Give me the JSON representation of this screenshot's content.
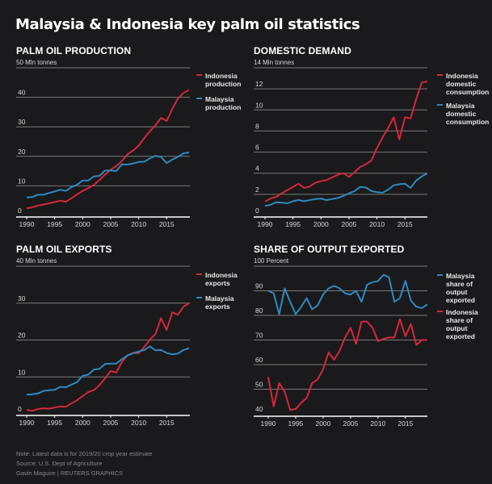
{
  "title": "Malaysia & Indonesia key palm oil statistics",
  "colors": {
    "indonesia": "#d5283a",
    "malaysia": "#2c8ac0",
    "grid": "#7a7a7a",
    "axis": "#ffffff",
    "background": "#1a191b"
  },
  "footer": {
    "note": "Note: Latest data is for 2019/20 crop year estimate",
    "source": "Source: U.S. Dept of Agriculture",
    "credit": "Gavin Maguire    | REUTERS GRAPHICS"
  },
  "chart_data": [
    {
      "id": "production",
      "type": "line",
      "title": "PALM OIL PRODUCTION",
      "unit_label": "50 Mln tonnes",
      "ylabel": "Mln tonnes",
      "ylim": [
        0,
        50
      ],
      "yticks": [
        0,
        10,
        20,
        30,
        40
      ],
      "xlim": [
        1990,
        2019
      ],
      "xticks": [
        1990,
        1995,
        2000,
        2005,
        2010,
        2015
      ],
      "grid": true,
      "legend_position": "right",
      "x": [
        1990,
        1991,
        1992,
        1993,
        1994,
        1995,
        1996,
        1997,
        1998,
        1999,
        2000,
        2001,
        2002,
        2003,
        2004,
        2005,
        2006,
        2007,
        2008,
        2009,
        2010,
        2011,
        2012,
        2013,
        2014,
        2015,
        2016,
        2017,
        2018,
        2019
      ],
      "series": [
        {
          "name": "Indonesia production",
          "country": "indonesia",
          "values": [
            2.4,
            2.7,
            3.3,
            3.7,
            4.1,
            4.5,
            5.0,
            4.6,
            5.8,
            7.1,
            8.3,
            9.2,
            10.3,
            12.0,
            13.8,
            15.5,
            16.7,
            18.4,
            20.7,
            22.0,
            23.6,
            26.2,
            28.5,
            30.5,
            33.0,
            32.0,
            36.0,
            39.5,
            41.5,
            42.5
          ]
        },
        {
          "name": "Malaysia production",
          "country": "malaysia",
          "values": [
            6.1,
            6.2,
            7.0,
            7.0,
            7.6,
            8.1,
            8.7,
            8.3,
            9.6,
            10.4,
            11.8,
            11.8,
            13.2,
            13.4,
            15.2,
            15.2,
            15.0,
            17.3,
            17.2,
            17.6,
            18.1,
            18.2,
            19.3,
            20.2,
            19.8,
            17.7,
            18.9,
            19.8,
            21.0,
            21.3
          ]
        }
      ],
      "legend": [
        "Indonesia\nproduction",
        "Malaysia\nproduction"
      ]
    },
    {
      "id": "demand",
      "type": "line",
      "title": "DOMESTIC DEMAND",
      "unit_label": "14 Mln tonnes",
      "ylabel": "Mln tonnes",
      "ylim": [
        0,
        14
      ],
      "yticks": [
        0,
        2,
        4,
        6,
        8,
        10,
        12
      ],
      "xlim": [
        1990,
        2019
      ],
      "xticks": [
        1990,
        1995,
        2000,
        2005,
        2010,
        2015
      ],
      "grid": true,
      "legend_position": "right",
      "x": [
        1990,
        1991,
        1992,
        1993,
        1994,
        1995,
        1996,
        1997,
        1998,
        1999,
        2000,
        2001,
        2002,
        2003,
        2004,
        2005,
        2006,
        2007,
        2008,
        2009,
        2010,
        2011,
        2012,
        2013,
        2014,
        2015,
        2016,
        2017,
        2018,
        2019
      ],
      "series": [
        {
          "name": "Indonesia domestic consumption",
          "country": "indonesia",
          "values": [
            1.3,
            1.6,
            1.75,
            2.1,
            2.4,
            2.7,
            3.0,
            2.6,
            2.75,
            3.1,
            3.25,
            3.35,
            3.6,
            3.85,
            4.0,
            3.65,
            4.1,
            4.6,
            4.85,
            5.2,
            6.4,
            7.4,
            8.3,
            9.3,
            7.2,
            9.3,
            9.2,
            11.0,
            12.6,
            12.7
          ]
        },
        {
          "name": "Malaysia domestic consumption",
          "country": "malaysia",
          "values": [
            0.9,
            1.0,
            1.25,
            1.2,
            1.15,
            1.35,
            1.45,
            1.35,
            1.45,
            1.55,
            1.6,
            1.45,
            1.55,
            1.65,
            1.85,
            2.1,
            2.3,
            2.7,
            2.65,
            2.3,
            2.2,
            2.15,
            2.45,
            2.85,
            2.95,
            3.0,
            2.6,
            3.3,
            3.7,
            4.0
          ]
        }
      ],
      "legend": [
        "Indonesia\ndomestic\nconsumption",
        "Malaysia\ndomestic\nconsumption"
      ]
    },
    {
      "id": "exports",
      "type": "line",
      "title": "PALM OIL EXPORTS",
      "unit_label": "40 Mln tonnes",
      "ylabel": "Mln tonnes",
      "ylim": [
        0,
        40
      ],
      "yticks": [
        0,
        10,
        20,
        30
      ],
      "xlim": [
        1990,
        2019
      ],
      "xticks": [
        1990,
        1995,
        2000,
        2005,
        2010,
        2015
      ],
      "grid": true,
      "legend_position": "right",
      "x": [
        1990,
        1991,
        1992,
        1993,
        1994,
        1995,
        1996,
        1997,
        1998,
        1999,
        2000,
        2001,
        2002,
        2003,
        2004,
        2005,
        2006,
        2007,
        2008,
        2009,
        2010,
        2011,
        2012,
        2013,
        2014,
        2015,
        2016,
        2017,
        2018,
        2019
      ],
      "series": [
        {
          "name": "Indonesia exports",
          "country": "indonesia",
          "values": [
            1.1,
            0.8,
            1.3,
            1.5,
            1.4,
            1.7,
            2.0,
            1.9,
            2.8,
            3.7,
            4.8,
            5.9,
            6.4,
            7.8,
            9.6,
            11.6,
            11.2,
            14.0,
            15.9,
            16.5,
            16.4,
            18.1,
            20.1,
            21.6,
            25.9,
            22.7,
            27.5,
            26.8,
            29.0,
            30.0
          ]
        },
        {
          "name": "Malaysia exports",
          "country": "malaysia",
          "values": [
            5.2,
            5.3,
            5.5,
            6.2,
            6.4,
            6.5,
            7.3,
            7.2,
            7.9,
            8.6,
            10.3,
            10.6,
            12.0,
            12.2,
            13.5,
            13.6,
            13.6,
            14.8,
            15.8,
            16.4,
            16.9,
            17.3,
            18.3,
            17.2,
            17.3,
            16.5,
            16.1,
            16.3,
            17.3,
            17.8
          ]
        }
      ],
      "legend": [
        "Indonesia\nexports",
        "Malaysia\nexports"
      ]
    },
    {
      "id": "share",
      "type": "line",
      "title": "SHARE OF OUTPUT EXPORTED",
      "unit_label": "100 Percent",
      "ylabel": "Percent",
      "ylim": [
        40,
        100
      ],
      "yticks": [
        40,
        50,
        60,
        70,
        80,
        90
      ],
      "xlim": [
        1990,
        2019
      ],
      "xticks": [
        1990,
        1995,
        2000,
        2005,
        2010,
        2015
      ],
      "grid": true,
      "legend_position": "right",
      "x": [
        1990,
        1991,
        1992,
        1993,
        1994,
        1995,
        1996,
        1997,
        1998,
        1999,
        2000,
        2001,
        2002,
        2003,
        2004,
        2005,
        2006,
        2007,
        2008,
        2009,
        2010,
        2011,
        2012,
        2013,
        2014,
        2015,
        2016,
        2017,
        2018,
        2019
      ],
      "series": [
        {
          "name": "Malaysia share of output exported",
          "country": "malaysia",
          "values": [
            90,
            89,
            80.5,
            91,
            85.5,
            80.5,
            83.5,
            87,
            82.5,
            84,
            88.5,
            91,
            92,
            91,
            89,
            88.5,
            90,
            85.5,
            92.5,
            93.5,
            94,
            96.5,
            95.5,
            85.5,
            87,
            94,
            86,
            83.5,
            83,
            84.5
          ]
        },
        {
          "name": "Indonesia share of output exported",
          "country": "indonesia",
          "values": [
            55,
            43,
            52.5,
            49,
            41.5,
            42,
            44.5,
            46.5,
            52.5,
            54,
            58,
            65,
            62,
            65.5,
            71,
            75,
            68.5,
            77.5,
            77.5,
            75,
            69.5,
            70.5,
            71,
            71,
            78.5,
            71.5,
            76.5,
            68,
            70,
            70
          ]
        }
      ],
      "legend": [
        "Malaysia\nshare of\noutput\nexported",
        "Indonesia\nshare of\noutput\nexported"
      ]
    }
  ]
}
